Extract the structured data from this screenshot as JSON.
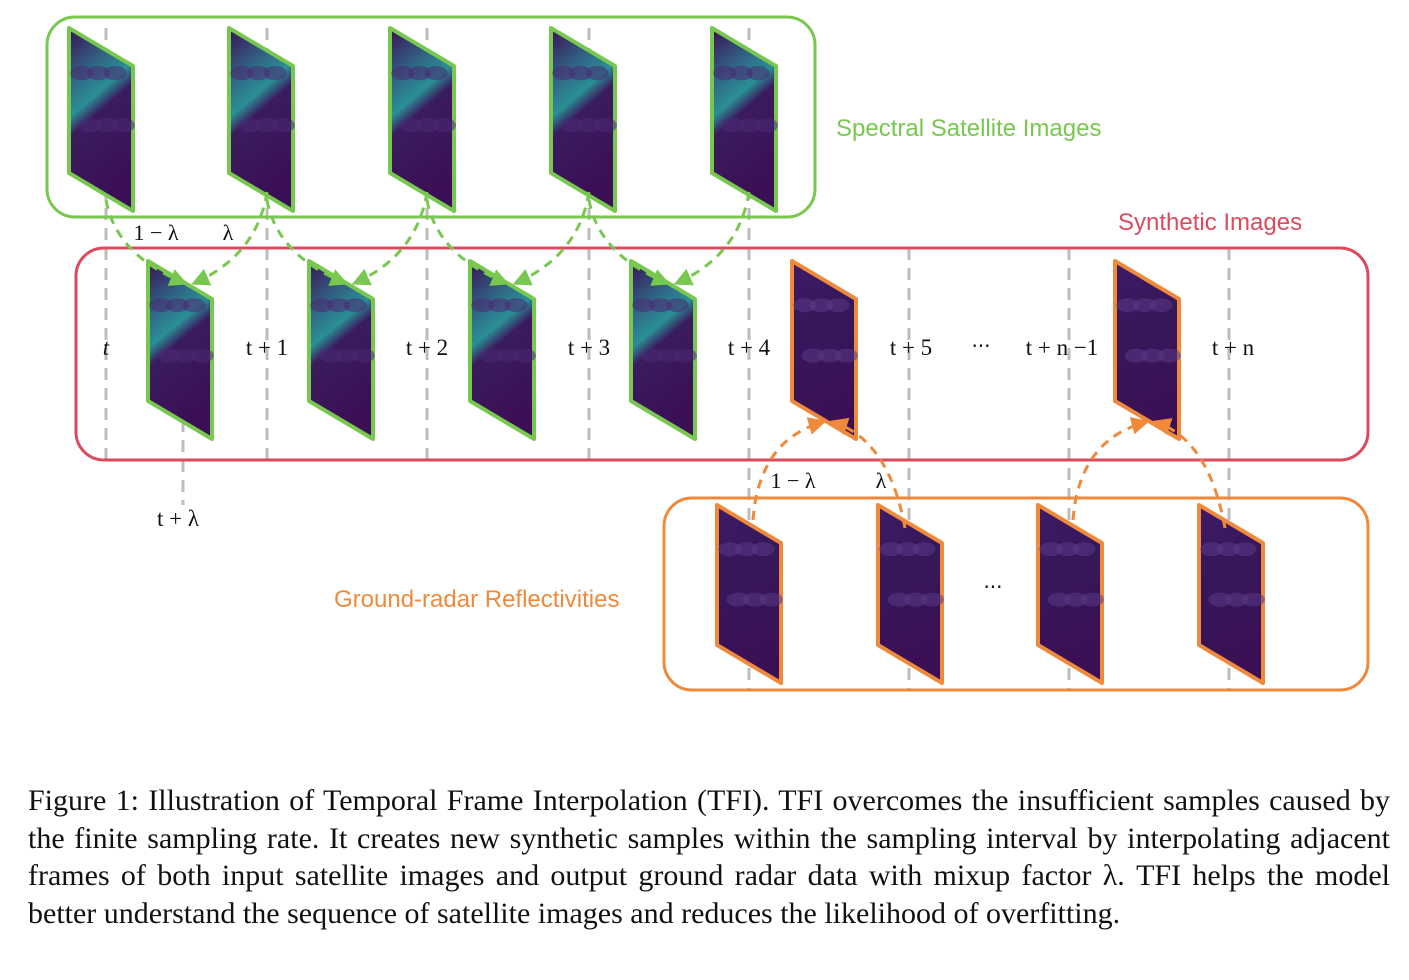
{
  "colors": {
    "satellite": "#78c850",
    "synthetic": "#dc4a5e",
    "radar": "#ef8a3c",
    "guide": "#bdbdbd",
    "frame_dark": "#3b0f55",
    "frame_teal": "#2a7f8e",
    "text": "#111111"
  },
  "labels": {
    "satellite_group": "Spectral Satellite Images",
    "synthetic_group": "Synthetic Images",
    "radar_group": "Ground-radar Reflectivities"
  },
  "time_labels": [
    "t",
    "t + 1",
    "t + 2",
    "t + 3",
    "t + 4",
    "t + 5",
    "t + n −1",
    "t + n"
  ],
  "row_ellipsis": "···",
  "radar_ellipsis": "...",
  "lambda_labels": {
    "sat_one_minus": "1 − λ",
    "sat_lambda": "λ",
    "radar_one_minus": "1 − λ",
    "radar_lambda": "λ",
    "t_plus_lambda": "t + λ"
  },
  "icons": [
    "satellite-frame-icon",
    "radar-frame-icon",
    "interpolation-arrow-icon"
  ],
  "caption": "Figure 1: Illustration of Temporal Frame Interpolation (TFI). TFI overcomes the insufficient samples caused by the finite sampling rate. It creates new synthetic samples within the sampling interval by interpolating adjacent frames of both input satellite images and output ground radar data with mixup factor λ. TFI helps the model better understand the sequence of satellite images and reduces the likelihood of overfitting."
}
